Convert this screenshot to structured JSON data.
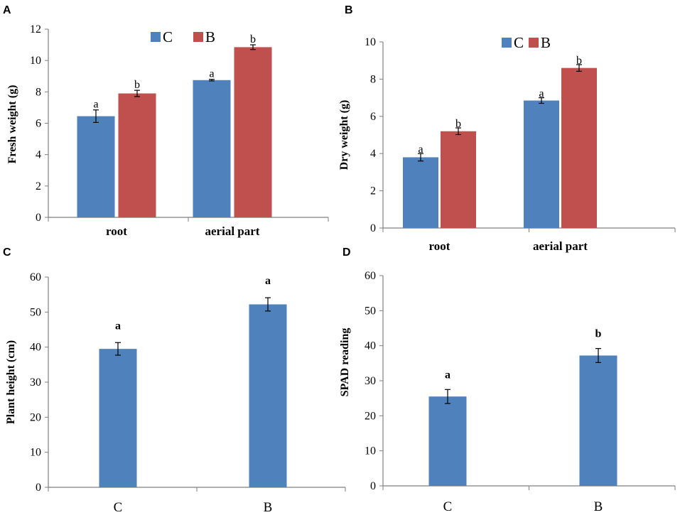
{
  "colors": {
    "C": "#4f81bd",
    "B": "#c0504d",
    "axis": "#7f7f7f"
  },
  "chart_data": [
    {
      "id": "A",
      "panel_label": "A",
      "type": "bar",
      "categories": [
        "root",
        "aerial part"
      ],
      "series": [
        {
          "name": "C",
          "values": [
            6.45,
            8.75
          ],
          "errors": [
            0.4,
            0.05
          ],
          "letters": [
            "a",
            "a"
          ]
        },
        {
          "name": "B",
          "values": [
            7.9,
            10.85
          ],
          "errors": [
            0.2,
            0.15
          ],
          "letters": [
            "b",
            "b"
          ]
        }
      ],
      "xlabel": "",
      "ylabel": "Fresh weight (g)",
      "ylim": [
        0,
        12
      ],
      "ticks": [
        0,
        2,
        4,
        6,
        8,
        10,
        12
      ],
      "legend": "top-center"
    },
    {
      "id": "B",
      "panel_label": "B",
      "type": "bar",
      "categories": [
        "root",
        "aerial part"
      ],
      "series": [
        {
          "name": "C",
          "values": [
            3.8,
            6.85
          ],
          "errors": [
            0.2,
            0.15
          ],
          "letters": [
            "a",
            "a"
          ]
        },
        {
          "name": "B",
          "values": [
            5.2,
            8.6
          ],
          "errors": [
            0.18,
            0.18
          ],
          "letters": [
            "b",
            "b"
          ]
        }
      ],
      "xlabel": "",
      "ylabel": "Dry weight (g)",
      "ylim": [
        0,
        10
      ],
      "ticks": [
        0,
        2,
        4,
        6,
        8,
        10
      ],
      "legend": "top-center"
    },
    {
      "id": "C",
      "panel_label": "C",
      "type": "bar",
      "categories": [
        "C",
        "B"
      ],
      "series": [
        {
          "name": "Plant height",
          "values": [
            39.5,
            52.2
          ],
          "errors": [
            1.8,
            1.9
          ],
          "letters": [
            "a",
            "a"
          ]
        }
      ],
      "xlabel": "",
      "ylabel": "Plant height (cm)",
      "ylim": [
        0,
        60
      ],
      "ticks": [
        0,
        10,
        20,
        30,
        40,
        50,
        60
      ]
    },
    {
      "id": "D",
      "panel_label": "D",
      "type": "bar",
      "categories": [
        "C",
        "B"
      ],
      "series": [
        {
          "name": "SPAD reading",
          "values": [
            25.5,
            37.2
          ],
          "errors": [
            2.0,
            2.0
          ],
          "letters": [
            "a",
            "b"
          ]
        }
      ],
      "xlabel": "",
      "ylabel": "SPAD reading",
      "ylim": [
        0,
        60
      ],
      "ticks": [
        0,
        10,
        20,
        30,
        40,
        50,
        60
      ]
    }
  ]
}
